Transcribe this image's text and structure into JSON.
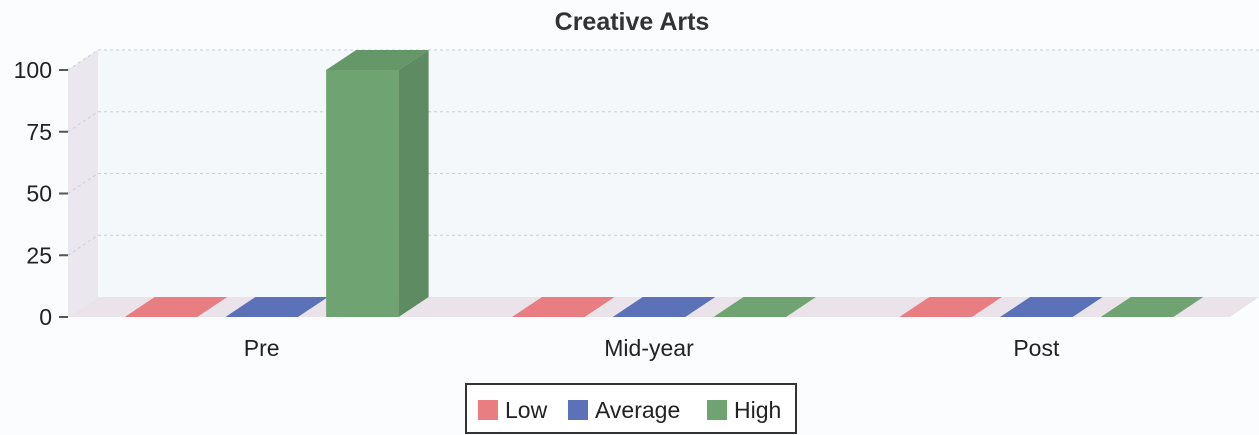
{
  "chart_data": {
    "type": "bar",
    "title": "Creative Arts",
    "categories": [
      "Pre",
      "Mid-year",
      "Post"
    ],
    "series": [
      {
        "name": "Low",
        "color": "#e87d82",
        "values": [
          0,
          0,
          0
        ]
      },
      {
        "name": "Average",
        "color": "#5b72b8",
        "values": [
          0,
          0,
          0
        ]
      },
      {
        "name": "High",
        "color": "#6fa472",
        "values": [
          100,
          0,
          0
        ]
      }
    ],
    "ylim": [
      0,
      100
    ],
    "yticks": [
      0,
      25,
      50,
      75,
      100
    ],
    "grid": true,
    "legend_position": "bottom"
  }
}
